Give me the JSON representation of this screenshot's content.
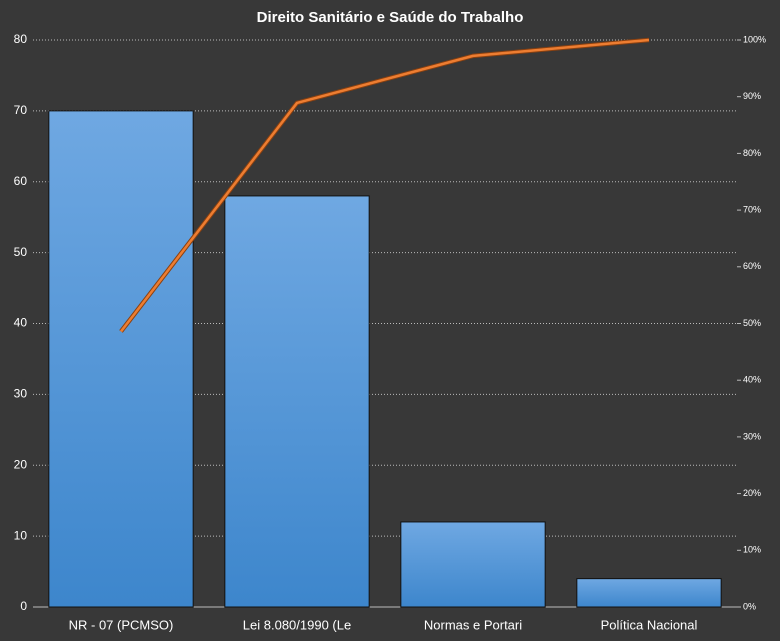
{
  "chart_data": {
    "type": "pareto",
    "title": "Direito  Sanitário  e Saúde do Trabalho",
    "categories": [
      "NR - 07 (PCMSO)",
      "Lei 8.080/1990 (Le",
      "Normas e Portari",
      "Política Nacional"
    ],
    "series": [
      {
        "type": "bar",
        "color": "#4a90d6",
        "values": [
          70,
          58,
          12,
          4
        ]
      },
      {
        "type": "line",
        "axis": "y2",
        "color": "#ed7d31",
        "values": [
          48.6,
          88.9,
          97.2,
          100
        ]
      }
    ],
    "ylim": [
      0,
      80
    ],
    "yticks": [
      0,
      10,
      20,
      30,
      40,
      50,
      60,
      70,
      80
    ],
    "y2lim": [
      0,
      100
    ],
    "y2ticks": [
      {
        "value": 0,
        "label": "0%"
      },
      {
        "value": 10,
        "label": "10%"
      },
      {
        "value": 20,
        "label": "20%"
      },
      {
        "value": 30,
        "label": "30%"
      },
      {
        "value": 40,
        "label": "40%"
      },
      {
        "value": 50,
        "label": "50%"
      },
      {
        "value": 60,
        "label": "60%"
      },
      {
        "value": 70,
        "label": "70%"
      },
      {
        "value": 80,
        "label": "80%"
      },
      {
        "value": 90,
        "label": "90%"
      },
      {
        "value": 100,
        "label": "100%"
      }
    ],
    "grid": true
  }
}
